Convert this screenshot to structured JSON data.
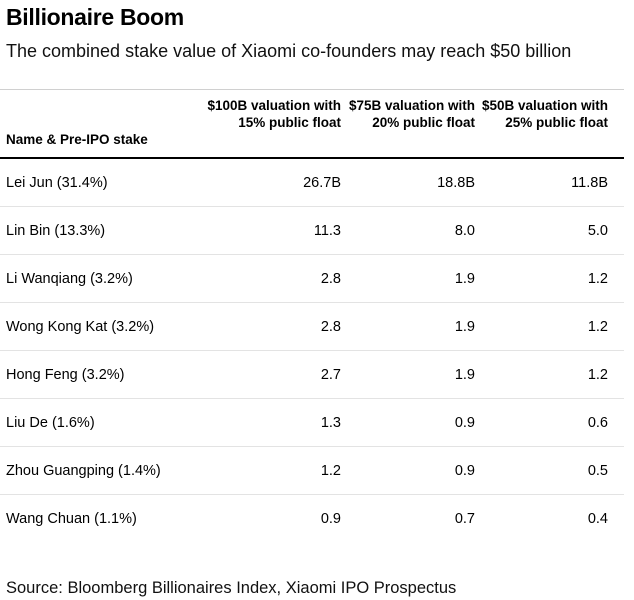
{
  "chart_data": {
    "type": "table",
    "title": "Billionaire Boom",
    "subtitle": "The combined stake value of Xiaomi co-founders may reach $50 billion",
    "columns": [
      "Name & Pre-IPO stake",
      "$100B valuation with 15% public float",
      "$75B valuation with 20% public float",
      "$50B valuation with 25% public float"
    ],
    "rows": [
      [
        "Lei Jun (31.4%)",
        "26.7B",
        "18.8B",
        "11.8B"
      ],
      [
        "Lin Bin (13.3%)",
        "11.3",
        "8.0",
        "5.0"
      ],
      [
        "Li Wanqiang (3.2%)",
        "2.8",
        "1.9",
        "1.2"
      ],
      [
        "Wong Kong Kat (3.2%)",
        "2.8",
        "1.9",
        "1.2"
      ],
      [
        "Hong Feng (3.2%)",
        "2.7",
        "1.9",
        "1.2"
      ],
      [
        "Liu De (1.6%)",
        "1.3",
        "0.9",
        "0.6"
      ],
      [
        "Zhou Guangping (1.4%)",
        "1.2",
        "0.9",
        "0.5"
      ],
      [
        "Wang Chuan (1.1%)",
        "0.9",
        "0.7",
        "0.4"
      ]
    ],
    "source": "Source: Bloomberg Billionaires Index, Xiaomi IPO Prospectus"
  }
}
